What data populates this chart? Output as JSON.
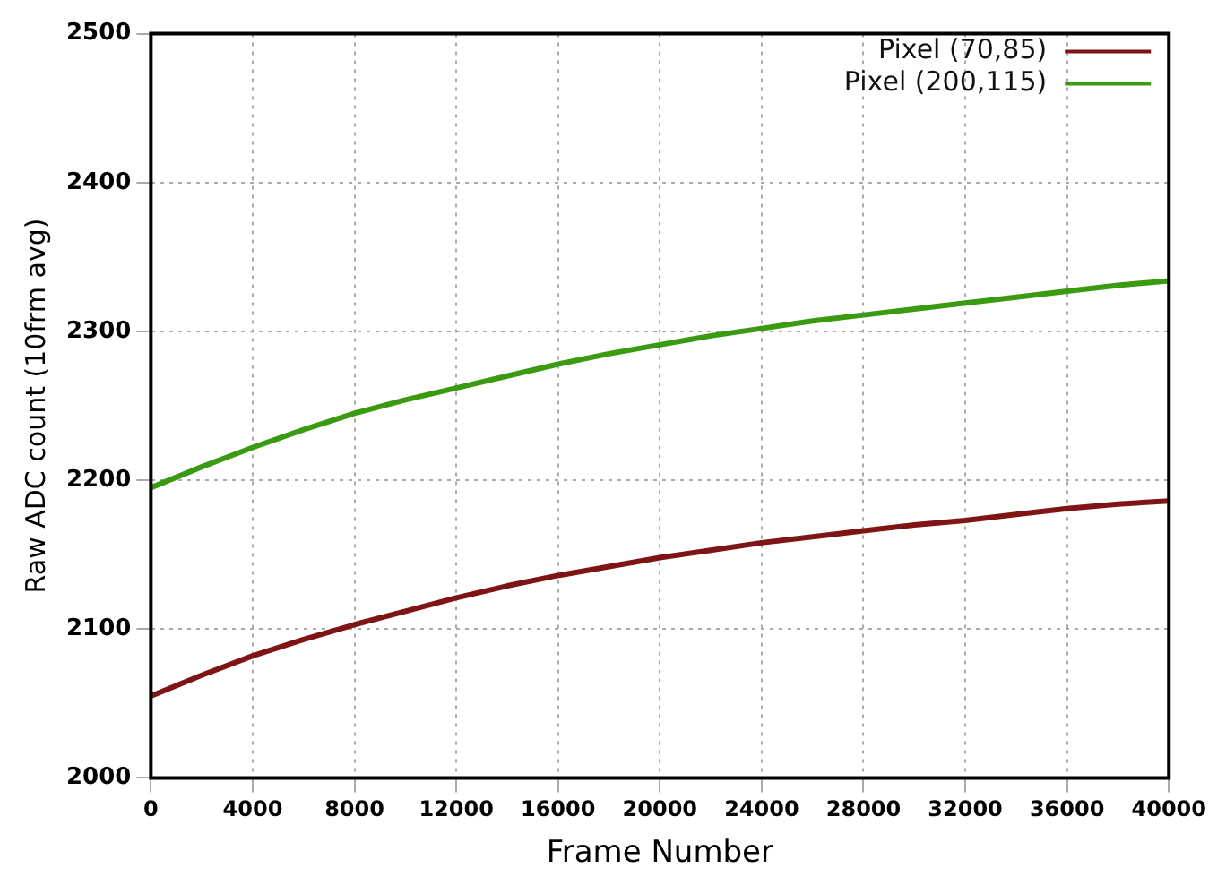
{
  "chart_data": {
    "type": "line",
    "xlabel": "Frame Number",
    "ylabel": "Raw ADC count (10frm avg)",
    "x": [
      0,
      2000,
      4000,
      6000,
      8000,
      10000,
      12000,
      14000,
      16000,
      18000,
      20000,
      22000,
      24000,
      26000,
      28000,
      30000,
      32000,
      34000,
      36000,
      38000,
      40000
    ],
    "series": [
      {
        "name": "Pixel (70,85)",
        "color": "#7f1414",
        "values": [
          2055,
          2069,
          2082,
          2093,
          2103,
          2112,
          2121,
          2129,
          2136,
          2142,
          2148,
          2153,
          2158,
          2162,
          2166,
          2170,
          2173,
          2177,
          2181,
          2184,
          2186
        ]
      },
      {
        "name": "Pixel (200,115)",
        "color": "#3a9a12",
        "values": [
          2195,
          2209,
          2222,
          2234,
          2245,
          2254,
          2262,
          2270,
          2278,
          2285,
          2291,
          2297,
          2302,
          2307,
          2311,
          2315,
          2319,
          2323,
          2327,
          2331,
          2334
        ]
      }
    ],
    "xlim": [
      0,
      40000
    ],
    "xticks": [
      0,
      4000,
      8000,
      12000,
      16000,
      20000,
      24000,
      28000,
      32000,
      36000,
      40000
    ],
    "ylim": [
      2000,
      2500
    ],
    "yticks": [
      2000,
      2100,
      2200,
      2300,
      2400,
      2500
    ],
    "grid": true,
    "legend": "top right",
    "marker": "none",
    "line_style": "solid"
  }
}
